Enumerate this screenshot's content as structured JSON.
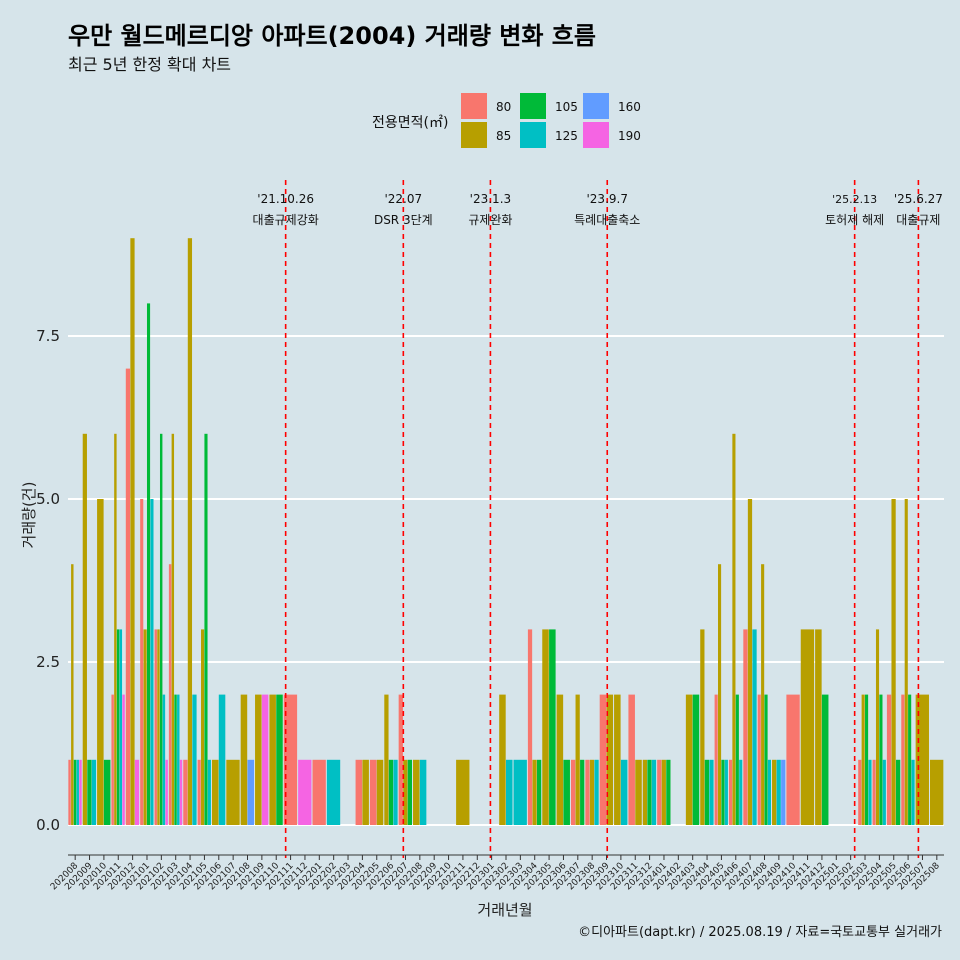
{
  "title": "우만 월드메르디앙 아파트(2004) 거래량 변화 흐름",
  "subtitle": "최근 5년 한정 확대 차트",
  "caption": "©디아파트(dapt.kr) / 2025.08.19 / 자료=국토교통부 실거래가",
  "colors": {
    "background": "#d6e4ea",
    "grid": "#ffffff",
    "event_line": "#ff0000"
  },
  "chart_data": {
    "type": "bar",
    "xlabel": "거래년월",
    "ylabel": "거래량(건)",
    "ylim": [
      0,
      9
    ],
    "yticks": [
      0.0,
      2.5,
      5.0,
      7.5
    ],
    "ytick_labels": [
      "0.0",
      "2.5",
      "5.0",
      "7.5"
    ],
    "legend": {
      "title": "전용면적(㎡)",
      "position": "top"
    },
    "categories": [
      "202008",
      "202009",
      "202010",
      "202011",
      "202012",
      "202101",
      "202102",
      "202103",
      "202104",
      "202105",
      "202106",
      "202107",
      "202108",
      "202109",
      "202110",
      "202111",
      "202112",
      "202201",
      "202202",
      "202203",
      "202204",
      "202205",
      "202206",
      "202207",
      "202208",
      "202209",
      "202210",
      "202211",
      "202212",
      "202301",
      "202302",
      "202303",
      "202304",
      "202305",
      "202306",
      "202307",
      "202308",
      "202309",
      "202310",
      "202311",
      "202312",
      "202401",
      "202402",
      "202403",
      "202404",
      "202405",
      "202406",
      "202407",
      "202408",
      "202409",
      "202410",
      "202411",
      "202412",
      "202501",
      "202502",
      "202503",
      "202504",
      "202505",
      "202506",
      "202507",
      "202508"
    ],
    "series": [
      {
        "name": "80",
        "color": "#f8766d",
        "values": [
          1,
          0,
          0,
          2,
          7,
          5,
          3,
          4,
          1,
          1,
          0,
          0,
          0,
          0,
          0,
          2,
          0,
          1,
          0,
          0,
          1,
          1,
          0,
          2,
          0,
          0,
          0,
          0,
          0,
          0,
          0,
          0,
          3,
          0,
          0,
          1,
          1,
          2,
          0,
          2,
          0,
          1,
          0,
          0,
          0,
          2,
          1,
          3,
          2,
          0,
          2,
          0,
          0,
          0,
          0,
          1,
          1,
          2,
          2,
          0,
          0
        ]
      },
      {
        "name": "85",
        "color": "#b79f00",
        "values": [
          4,
          6,
          5,
          6,
          9,
          3,
          3,
          6,
          9,
          3,
          1,
          1,
          2,
          2,
          2,
          0,
          0,
          0,
          0,
          0,
          1,
          1,
          2,
          1,
          1,
          0,
          0,
          1,
          0,
          0,
          2,
          0,
          1,
          3,
          2,
          2,
          1,
          2,
          2,
          1,
          1,
          1,
          0,
          2,
          3,
          4,
          6,
          5,
          4,
          1,
          0,
          3,
          3,
          0,
          0,
          2,
          3,
          5,
          5,
          2,
          1
        ]
      },
      {
        "name": "105",
        "color": "#00ba38",
        "values": [
          1,
          1,
          1,
          3,
          0,
          8,
          6,
          2,
          0,
          6,
          0,
          0,
          0,
          0,
          2,
          0,
          0,
          0,
          0,
          0,
          0,
          0,
          1,
          1,
          0,
          0,
          0,
          0,
          0,
          0,
          0,
          0,
          1,
          3,
          1,
          1,
          0,
          0,
          0,
          0,
          1,
          1,
          0,
          2,
          1,
          1,
          2,
          0,
          2,
          0,
          0,
          0,
          2,
          0,
          0,
          2,
          2,
          1,
          2,
          0,
          0
        ]
      },
      {
        "name": "125",
        "color": "#00bfc4",
        "values": [
          1,
          1,
          0,
          3,
          0,
          5,
          2,
          2,
          2,
          1,
          2,
          0,
          0,
          0,
          0,
          0,
          0,
          0,
          1,
          0,
          0,
          0,
          1,
          0,
          1,
          0,
          0,
          0,
          0,
          0,
          1,
          1,
          0,
          0,
          0,
          0,
          1,
          0,
          1,
          0,
          1,
          0,
          0,
          0,
          1,
          1,
          1,
          3,
          1,
          1,
          0,
          0,
          0,
          0,
          0,
          1,
          1,
          0,
          1,
          0,
          0
        ]
      },
      {
        "name": "160",
        "color": "#619cff",
        "values": [
          0,
          0,
          0,
          0,
          0,
          0,
          0,
          0,
          0,
          0,
          0,
          0,
          1,
          0,
          0,
          0,
          0,
          0,
          0,
          0,
          0,
          0,
          0,
          0,
          0,
          0,
          0,
          0,
          0,
          0,
          0,
          0,
          0,
          0,
          0,
          0,
          0,
          0,
          0,
          0,
          0,
          0,
          0,
          0,
          0,
          0,
          0,
          0,
          0,
          1,
          0,
          0,
          0,
          0,
          0,
          0,
          0,
          0,
          0,
          0,
          0
        ]
      },
      {
        "name": "190",
        "color": "#f564e3",
        "values": [
          1,
          0,
          0,
          2,
          1,
          0,
          1,
          1,
          0,
          0,
          0,
          0,
          0,
          2,
          0,
          0,
          1,
          0,
          0,
          0,
          0,
          0,
          0,
          0,
          0,
          0,
          0,
          0,
          0,
          0,
          0,
          0,
          0,
          0,
          0,
          0,
          0,
          0,
          0,
          0,
          0,
          0,
          0,
          0,
          0,
          0,
          0,
          0,
          0,
          0,
          0,
          0,
          0,
          0,
          0,
          0,
          0,
          0,
          0,
          0,
          0
        ]
      }
    ],
    "events": [
      {
        "date": "2021-10-26",
        "label_date": "'21.10.26",
        "label_text": "대출규제강화"
      },
      {
        "date": "2022-07-01",
        "label_date": "'22.07",
        "label_text": "DSR 3단계"
      },
      {
        "date": "2023-01-03",
        "label_date": "'23.1.3",
        "label_text": "규제완화"
      },
      {
        "date": "2023-09-07",
        "label_date": "'23.9.7",
        "label_text": "특례대출축소"
      },
      {
        "date": "2025-02-13",
        "label_date": "'25.2.13",
        "label_text": "토허제 해제"
      },
      {
        "date": "2025-06-27",
        "label_date": "'25.6.27",
        "label_text": "대출규제"
      }
    ]
  }
}
